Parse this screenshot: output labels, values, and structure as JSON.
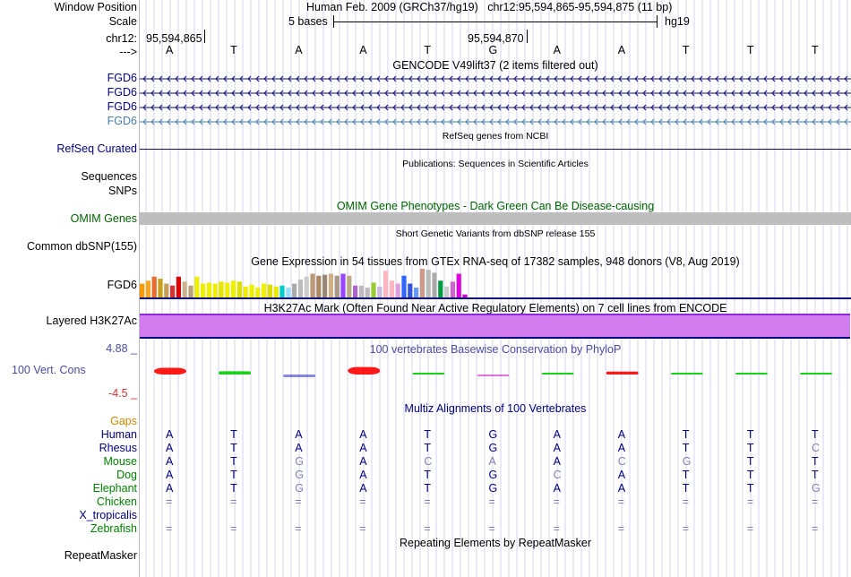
{
  "header": {
    "window_position_label": "Window Position",
    "window_position_text": "Human Feb. 2009 (GRCh37/hg19)   chr12:95,594,865-95,594,875 (11 bp)",
    "scale_label": "Scale",
    "scale_text": "5 bases",
    "scale_db": "hg19",
    "chrom_label": "chr12:",
    "pos_left": "95,594,865",
    "pos_mid": "95,594,870",
    "strand_label": "--->",
    "bases": [
      "A",
      "T",
      "A",
      "A",
      "T",
      "G",
      "A",
      "A",
      "T",
      "T",
      "T"
    ]
  },
  "tracks": {
    "gencode_title": "GENCODE V49lift37 (2 items filtered out)",
    "gencode_items": [
      "FGD6",
      "FGD6",
      "FGD6",
      "FGD6"
    ],
    "refseq_label": "RefSeq Curated",
    "refseq_title": "RefSeq genes from NCBI",
    "publications_title": "Publications: Sequences in Scientific Articles",
    "sequences_label": "Sequences",
    "snps_label": "SNPs",
    "omim_title": "OMIM Gene Phenotypes - Dark Green Can Be Disease-causing",
    "omim_label": "OMIM Genes",
    "dbsnp_title": "Short Genetic Variants from dbSNP release 155",
    "dbsnp_label": "Common dbSNP(155)",
    "gtex_title": "Gene Expression in 54 tissues from GTEx RNA-seq of 17382 samples, 948 donors (V8, Aug 2019)",
    "gtex_label": "FGD6",
    "h3k27ac_title": "H3K27Ac Mark (Often Found Near Active Regulatory Elements) on 7 cell lines from ENCODE",
    "h3k27ac_label": "Layered H3K27Ac",
    "phylop_title": "100 vertebrates Basewise Conservation by PhyloP",
    "phylop_label": "100 Vert. Cons",
    "phylop_max": "4.88 _",
    "phylop_min": "-4.5 _",
    "multiz_title": "Multiz Alignments of 100 Vertebrates",
    "gaps_label": "Gaps",
    "repeatmasker_title": "Repeating Elements by RepeatMasker",
    "repeatmasker_label": "RepeatMasker"
  },
  "gtex_values": [
    14,
    17,
    21,
    19,
    14,
    12,
    21,
    16,
    12,
    21,
    14,
    15,
    14,
    16,
    15,
    17,
    16,
    11,
    13,
    10,
    14,
    13,
    11,
    12,
    10,
    14,
    18,
    21,
    24,
    22,
    23,
    24,
    22,
    24,
    22,
    12,
    12,
    10,
    15,
    11,
    27,
    17,
    14,
    22,
    14,
    10,
    29,
    28,
    25,
    17,
    11,
    16,
    24,
    3
  ],
  "gtex_colors": [
    "#ff9900",
    "#f5a623",
    "#e86a2c",
    "#c8a020",
    "#c59d55",
    "#d63230",
    "#dd0000",
    "#cdb08c",
    "#b8a078",
    "#eeee00",
    "#eeee00",
    "#eeee00",
    "#eeee00",
    "#e6e600",
    "#eeee00",
    "#eeee00",
    "#dddd00",
    "#eeee00",
    "#eeee00",
    "#eeee00",
    "#f0f000",
    "#dddd00",
    "#e8e800",
    "#00cccc",
    "#99ddff",
    "#aaaaaa",
    "#bbbbbb",
    "#cccccc",
    "#bb9977",
    "#aa8866",
    "#998877",
    "#cfb087",
    "#aa9988",
    "#9944ff",
    "#bbaa88",
    "#aa66cc",
    "#bbbbbb",
    "#bbbbbb",
    "#99cc33",
    "#ccbbdd",
    "#ffb6c1",
    "#ffb6c1",
    "#dda0dd",
    "#3366ff",
    "#3355dd",
    "#6699ff",
    "#cc9988",
    "#bbbbbb",
    "#aaaaaa",
    "#009944",
    "#cccccc",
    "#cc66cc",
    "#dd00dd",
    "#cc00cc"
  ],
  "phylop_values": [
    2.5,
    1.2,
    -1.0,
    2.8,
    0.3,
    -0.6,
    0.2,
    1.1,
    0.4,
    0.4,
    0.2
  ],
  "phylop_colors": [
    "#ff0000",
    "#00cc00",
    "#2222cc",
    "#ff0000",
    "#00cc00",
    "#cc00cc",
    "#00cc00",
    "#ff0000",
    "#00cc00",
    "#00cc00",
    "#00cc00"
  ],
  "multiz": [
    {
      "species": "Human",
      "color": "#000080",
      "bases": [
        "A",
        "T",
        "A",
        "A",
        "T",
        "G",
        "A",
        "A",
        "T",
        "T",
        "T"
      ],
      "dim": []
    },
    {
      "species": "Rhesus",
      "color": "#000080",
      "bases": [
        "A",
        "T",
        "A",
        "A",
        "T",
        "G",
        "A",
        "A",
        "T",
        "T",
        "C"
      ],
      "dim": [
        10
      ]
    },
    {
      "species": "Mouse",
      "color": "#008000",
      "bases": [
        "A",
        "T",
        "G",
        "A",
        "C",
        "A",
        "A",
        "C",
        "G",
        "T",
        "T"
      ],
      "dim": [
        2,
        4,
        5,
        7,
        8
      ]
    },
    {
      "species": "Dog",
      "color": "#008000",
      "bases": [
        "A",
        "T",
        "G",
        "A",
        "T",
        "G",
        "C",
        "A",
        "T",
        "T",
        "T"
      ],
      "dim": [
        2,
        6
      ]
    },
    {
      "species": "Elephant",
      "color": "#008000",
      "bases": [
        "A",
        "T",
        "G",
        "A",
        "T",
        "G",
        "A",
        "A",
        "T",
        "T",
        "G"
      ],
      "dim": [
        2,
        10
      ]
    },
    {
      "species": "Chicken",
      "color": "#008000",
      "bases": [
        "=",
        "=",
        "=",
        "=",
        "=",
        "=",
        "=",
        "=",
        "=",
        "=",
        "="
      ],
      "dim": [
        0,
        1,
        2,
        3,
        4,
        5,
        6,
        7,
        8,
        9,
        10
      ]
    },
    {
      "species": "X_tropicalis",
      "color": "#000080",
      "bases": [
        "",
        "",
        "",
        "",
        "",
        "",
        "",
        "",
        "",
        "",
        ""
      ],
      "dim": []
    },
    {
      "species": "Zebrafish",
      "color": "#008000",
      "bases": [
        "=",
        "=",
        "=",
        "=",
        "=",
        "=",
        "=",
        "=",
        "=",
        "=",
        "="
      ],
      "dim": [
        0,
        1,
        2,
        3,
        4,
        5,
        6,
        7,
        8,
        9,
        10
      ]
    }
  ],
  "colors": {
    "label_navy": "#000080",
    "gencode_dark": "#0c0c78",
    "gencode_light": "#4a7ca8",
    "omim_green": "#006400",
    "phylop_blue": "#4b4b9f",
    "h3k27ac_fill": "#d27cf0",
    "h3k27ac_border": "#8a2be2",
    "gaps_orange": "#cc8800"
  }
}
